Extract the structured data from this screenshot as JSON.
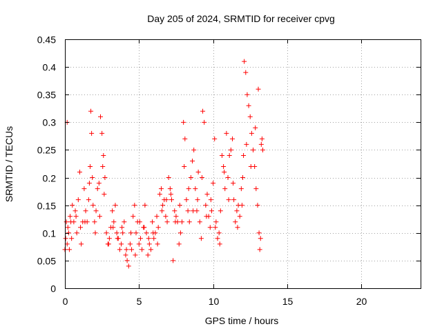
{
  "chart_data": {
    "type": "scatter",
    "title": "Day 205 of 2024, SRMTID for receiver cpvg",
    "xlabel": "GPS time / hours",
    "ylabel": "SRMTID / TECUs",
    "xlim": [
      0,
      24
    ],
    "ylim": [
      0,
      0.45
    ],
    "xticks": [
      0,
      5,
      10,
      15,
      20
    ],
    "xtick_labels": [
      "0",
      "5",
      "10",
      "15",
      "20"
    ],
    "yticks": [
      0,
      0.05,
      0.1,
      0.15,
      0.2,
      0.25,
      0.3,
      0.35,
      0.4,
      0.45
    ],
    "ytick_labels": [
      "0",
      "0.05",
      "0.1",
      "0.15",
      "0.2",
      "0.25",
      "0.3",
      "0.35",
      "0.4",
      "0.45"
    ],
    "grid": true,
    "marker": "+",
    "color": "#ff0000",
    "series": [
      {
        "name": "SRMTID",
        "x": [
          0.0,
          0.05,
          0.1,
          0.15,
          0.2,
          0.25,
          0.3,
          0.35,
          0.4,
          0.5,
          0.6,
          0.7,
          0.8,
          0.9,
          1.0,
          1.1,
          1.2,
          1.3,
          1.4,
          1.5,
          1.6,
          1.7,
          1.75,
          1.8,
          1.85,
          1.9,
          2.0,
          2.1,
          2.2,
          2.3,
          2.4,
          2.5,
          2.55,
          2.6,
          2.7,
          2.8,
          2.9,
          3.0,
          3.1,
          3.2,
          3.3,
          3.4,
          3.5,
          3.6,
          3.7,
          3.8,
          3.9,
          4.0,
          4.1,
          4.2,
          4.3,
          4.4,
          4.5,
          4.6,
          4.7,
          4.8,
          4.9,
          5.0,
          5.1,
          5.2,
          5.3,
          5.4,
          5.5,
          5.6,
          5.7,
          5.8,
          5.9,
          6.0,
          6.1,
          6.2,
          6.3,
          6.4,
          6.5,
          6.6,
          6.7,
          6.8,
          6.9,
          7.0,
          7.1,
          7.2,
          7.3,
          7.4,
          7.5,
          7.6,
          7.7,
          7.8,
          7.9,
          8.0,
          8.1,
          8.2,
          8.3,
          8.4,
          8.5,
          8.6,
          8.7,
          8.8,
          8.9,
          9.0,
          9.1,
          9.2,
          9.3,
          9.4,
          9.5,
          9.6,
          9.7,
          9.8,
          9.9,
          10.0,
          10.1,
          10.2,
          10.3,
          10.4,
          10.5,
          10.6,
          10.7,
          10.8,
          10.9,
          11.0,
          11.1,
          11.2,
          11.3,
          11.4,
          11.5,
          11.6,
          11.7,
          11.8,
          11.9,
          12.0,
          12.05,
          12.1,
          12.2,
          12.3,
          12.4,
          12.5,
          12.6,
          12.7,
          12.8,
          12.9,
          13.0,
          13.1,
          13.15,
          13.2,
          13.3,
          13.35,
          0.15,
          0.45,
          0.75,
          1.05,
          1.35,
          1.65,
          2.05,
          2.35,
          2.65,
          2.95,
          3.25,
          3.55,
          3.85,
          4.15,
          4.45,
          4.75,
          5.05,
          5.35,
          5.65,
          5.95,
          6.25,
          6.55,
          6.85,
          7.15,
          7.45,
          7.75,
          8.05,
          8.35,
          8.65,
          8.95,
          9.25,
          9.55,
          9.85,
          10.15,
          10.45,
          10.75,
          11.05,
          11.35,
          11.65,
          11.95,
          12.25,
          12.55,
          12.85,
          13.05,
          13.25
        ],
        "y": [
          0.07,
          0.09,
          0.12,
          0.08,
          0.11,
          0.1,
          0.07,
          0.13,
          0.12,
          0.15,
          0.12,
          0.14,
          0.1,
          0.16,
          0.21,
          0.08,
          0.12,
          0.18,
          0.14,
          0.12,
          0.16,
          0.22,
          0.32,
          0.28,
          0.2,
          0.15,
          0.12,
          0.14,
          0.18,
          0.19,
          0.31,
          0.28,
          0.22,
          0.24,
          0.2,
          0.1,
          0.08,
          0.09,
          0.11,
          0.14,
          0.12,
          0.15,
          0.1,
          0.09,
          0.07,
          0.08,
          0.1,
          0.12,
          0.06,
          0.05,
          0.04,
          0.08,
          0.07,
          0.13,
          0.15,
          0.1,
          0.12,
          0.08,
          0.09,
          0.07,
          0.11,
          0.15,
          0.1,
          0.06,
          0.08,
          0.07,
          0.12,
          0.09,
          0.1,
          0.13,
          0.11,
          0.17,
          0.18,
          0.15,
          0.16,
          0.13,
          0.12,
          0.2,
          0.18,
          0.16,
          0.05,
          0.14,
          0.13,
          0.12,
          0.08,
          0.1,
          0.12,
          0.3,
          0.27,
          0.16,
          0.14,
          0.12,
          0.2,
          0.23,
          0.25,
          0.18,
          0.14,
          0.21,
          0.12,
          0.09,
          0.32,
          0.3,
          0.15,
          0.17,
          0.13,
          0.11,
          0.14,
          0.19,
          0.27,
          0.12,
          0.09,
          0.1,
          0.14,
          0.24,
          0.22,
          0.18,
          0.28,
          0.2,
          0.24,
          0.25,
          0.27,
          0.16,
          0.12,
          0.14,
          0.15,
          0.13,
          0.18,
          0.2,
          0.24,
          0.41,
          0.39,
          0.35,
          0.33,
          0.31,
          0.28,
          0.25,
          0.22,
          0.18,
          0.15,
          0.1,
          0.07,
          0.09,
          0.27,
          0.25,
          0.3,
          0.09,
          0.13,
          0.11,
          0.12,
          0.19,
          0.1,
          0.13,
          0.17,
          0.08,
          0.11,
          0.09,
          0.11,
          0.07,
          0.1,
          0.06,
          0.12,
          0.11,
          0.09,
          0.1,
          0.08,
          0.14,
          0.16,
          0.17,
          0.12,
          0.15,
          0.22,
          0.18,
          0.14,
          0.16,
          0.2,
          0.13,
          0.16,
          0.11,
          0.08,
          0.21,
          0.16,
          0.19,
          0.11,
          0.15,
          0.26,
          0.22,
          0.29,
          0.36,
          0.26
        ]
      }
    ]
  }
}
